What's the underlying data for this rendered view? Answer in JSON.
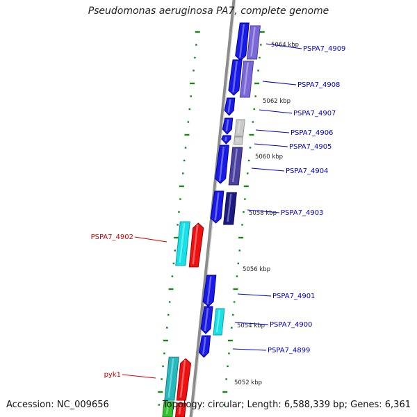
{
  "title": "Pseudomonas aeruginosa PA7, complete genome",
  "footer": {
    "accession": "Accession: NC_009656",
    "summary": "Topology: circular; Length: 6,588,339 bp; Genes: 6,361"
  },
  "colors": {
    "backbone": "#8c8c8c",
    "tick_dots": "#138a13",
    "forward_label": "#0000cc",
    "reverse_label": "#cc0000"
  },
  "kbp_markers": [
    "5064 kbp",
    "5062 kbp",
    "5060 kbp",
    "5058 kbp",
    "5056 kbp",
    "5054 kbp",
    "5052 kbp"
  ],
  "genes": [
    {
      "label": "PSPA7_4909",
      "strand": "forward"
    },
    {
      "label": "PSPA7_4908",
      "strand": "forward"
    },
    {
      "label": "PSPA7_4907",
      "strand": "forward"
    },
    {
      "label": "PSPA7_4906",
      "strand": "forward"
    },
    {
      "label": "PSPA7_4905",
      "strand": "forward"
    },
    {
      "label": "PSPA7_4904",
      "strand": "forward"
    },
    {
      "label": "PSPA7_4903",
      "strand": "forward"
    },
    {
      "label": "PSPA7_4902",
      "strand": "reverse"
    },
    {
      "label": "PSPA7_4901",
      "strand": "forward"
    },
    {
      "label": "PSPA7_4900",
      "strand": "forward"
    },
    {
      "label": "PSPA7_4899",
      "strand": "forward"
    },
    {
      "label": "pyk1",
      "strand": "reverse"
    }
  ]
}
